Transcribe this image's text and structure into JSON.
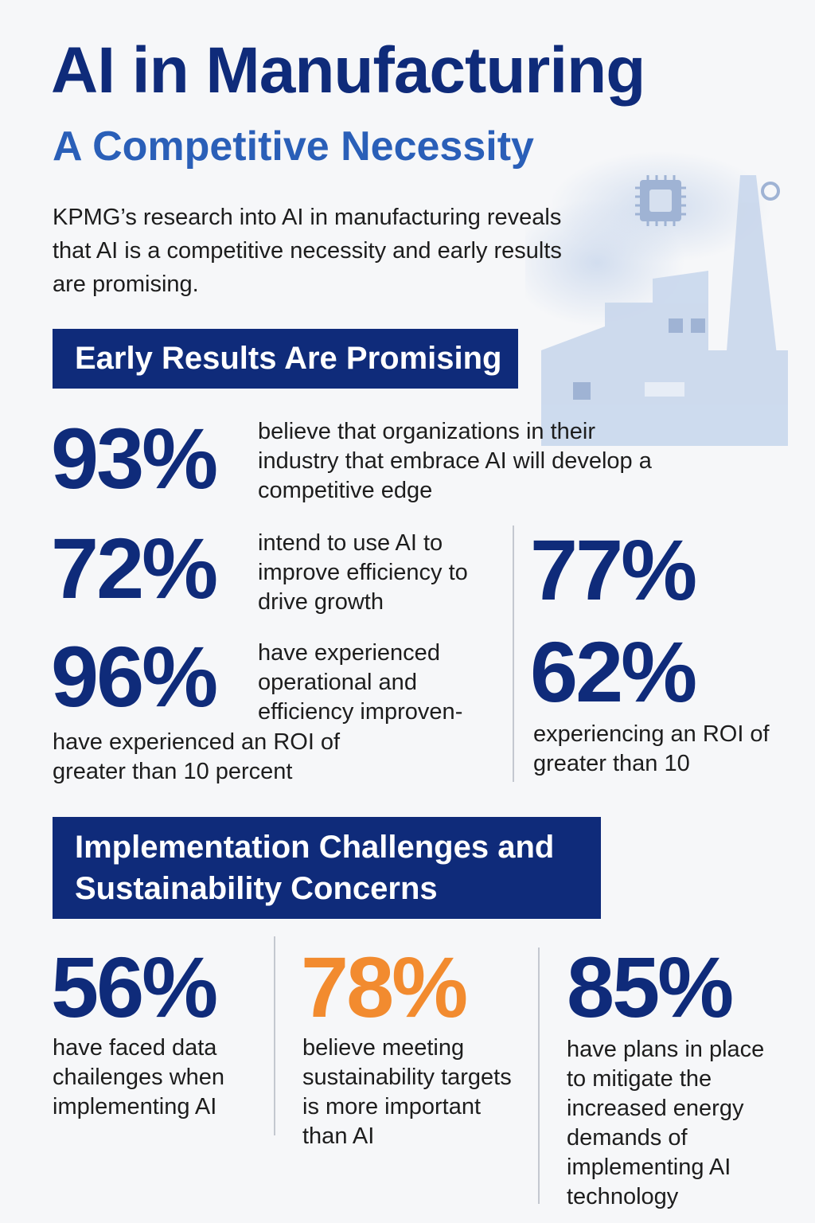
{
  "header": {
    "title": "AI in Manufacturing",
    "subtitle": "A Competitive Necessity",
    "intro": "KPMG’s research into AI in manufacturing reveals that AI is a competitive necessity and early results are promising."
  },
  "sections": {
    "early_results": {
      "heading": "Early Results Are Promising",
      "stats": [
        {
          "value": "93%",
          "text": "believe that organizations in their industry that embrace AI will develop a competitive edge"
        },
        {
          "value": "72%",
          "text": "intend to use AI to improve efficiency to drive growth"
        },
        {
          "value": "96%",
          "text": "have experienced operational and efficiency improven-"
        },
        {
          "value": "77%",
          "text": ""
        },
        {
          "value": "62%",
          "text": "experiencing an ROI of greater than 10"
        }
      ],
      "roi_note": "have experienced an ROI of greater than 10 percent"
    },
    "challenges": {
      "heading_line1": "Implementation Challenges and",
      "heading_line2": "Sustainability Concerns",
      "stats": [
        {
          "value": "56%",
          "text": "have faced data chailenges when implementing AI"
        },
        {
          "value": "78%",
          "text": "believe meeting sustainability targets is more important than AI"
        },
        {
          "value": "85%",
          "text": "have plans in place to mitigate the increased energy demands of implementing AI technology"
        }
      ]
    }
  },
  "colors": {
    "navy": "#0f2b7a",
    "blue": "#2a5fb8",
    "orange": "#f28b2f",
    "illustration": "#c9d7ec"
  },
  "illustration": "factory-with-chip-icon"
}
